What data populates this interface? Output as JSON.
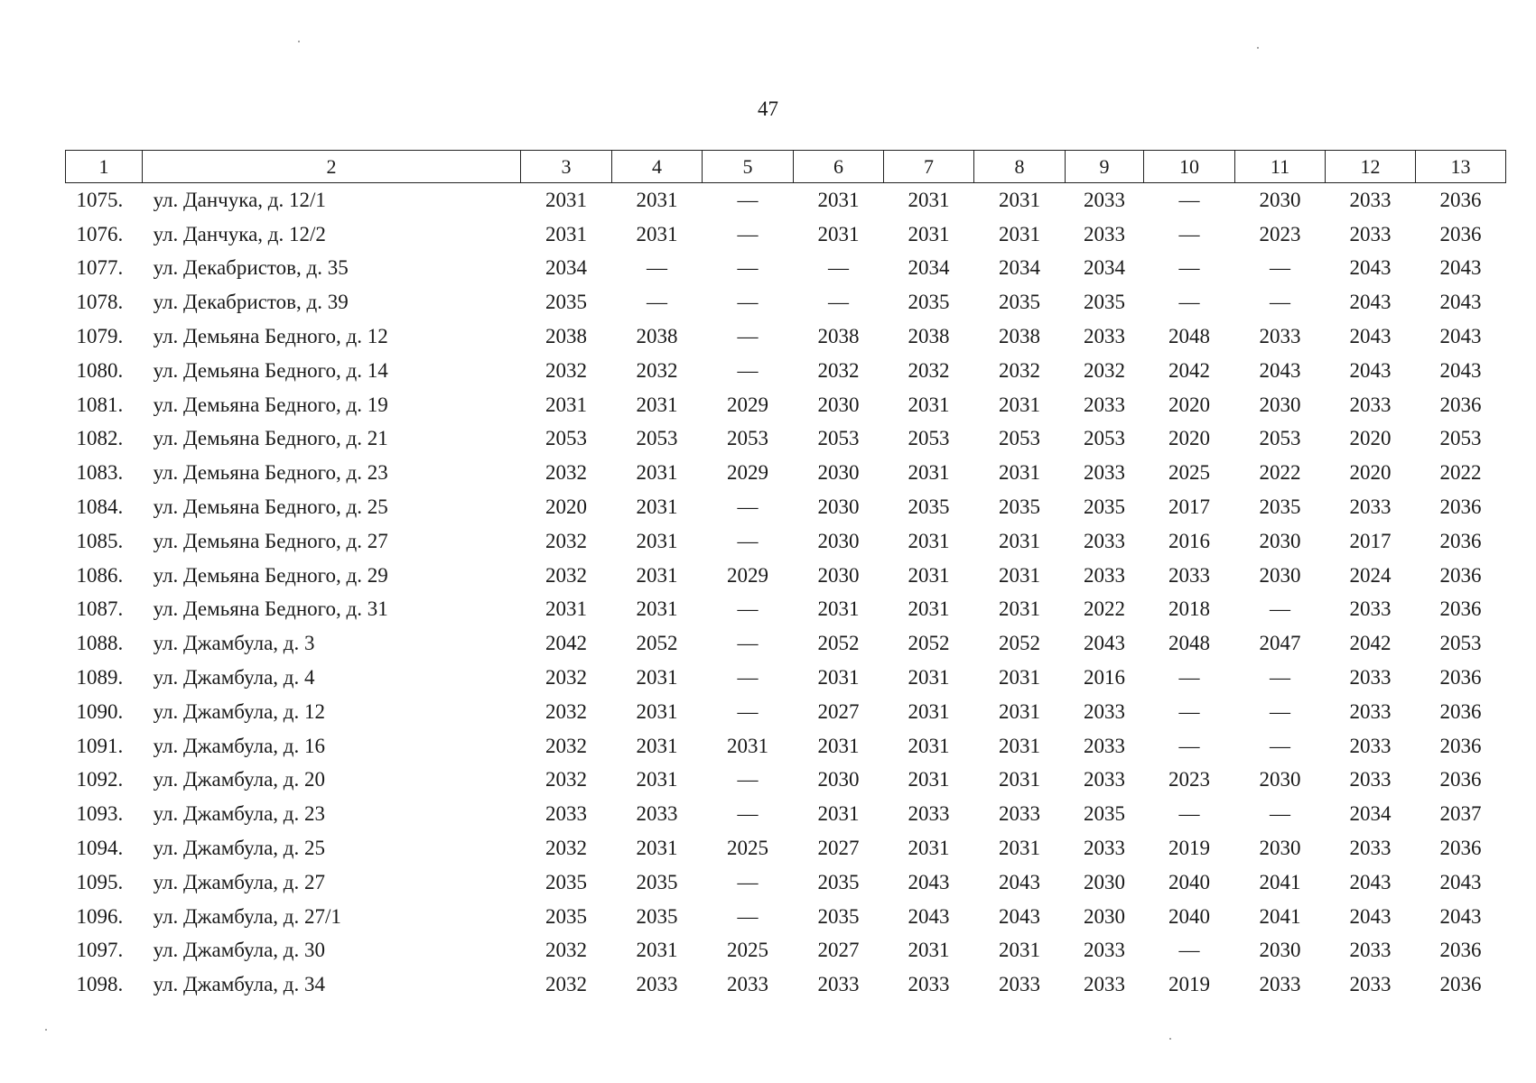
{
  "page_number": "47",
  "header": [
    "1",
    "2",
    "3",
    "4",
    "5",
    "6",
    "7",
    "8",
    "9",
    "10",
    "11",
    "12",
    "13"
  ],
  "rows": [
    [
      "1075.",
      "ул. Данчука, д. 12/1",
      "2031",
      "2031",
      "—",
      "2031",
      "2031",
      "2031",
      "2033",
      "—",
      "2030",
      "2033",
      "2036"
    ],
    [
      "1076.",
      "ул. Данчука, д. 12/2",
      "2031",
      "2031",
      "—",
      "2031",
      "2031",
      "2031",
      "2033",
      "—",
      "2023",
      "2033",
      "2036"
    ],
    [
      "1077.",
      "ул. Декабристов, д. 35",
      "2034",
      "—",
      "—",
      "—",
      "2034",
      "2034",
      "2034",
      "—",
      "—",
      "2043",
      "2043"
    ],
    [
      "1078.",
      "ул. Декабристов, д. 39",
      "2035",
      "—",
      "—",
      "—",
      "2035",
      "2035",
      "2035",
      "—",
      "—",
      "2043",
      "2043"
    ],
    [
      "1079.",
      "ул. Демьяна Бедного, д. 12",
      "2038",
      "2038",
      "—",
      "2038",
      "2038",
      "2038",
      "2033",
      "2048",
      "2033",
      "2043",
      "2043"
    ],
    [
      "1080.",
      "ул. Демьяна Бедного, д. 14",
      "2032",
      "2032",
      "—",
      "2032",
      "2032",
      "2032",
      "2032",
      "2042",
      "2043",
      "2043",
      "2043"
    ],
    [
      "1081.",
      "ул. Демьяна Бедного, д. 19",
      "2031",
      "2031",
      "2029",
      "2030",
      "2031",
      "2031",
      "2033",
      "2020",
      "2030",
      "2033",
      "2036"
    ],
    [
      "1082.",
      "ул. Демьяна Бедного, д. 21",
      "2053",
      "2053",
      "2053",
      "2053",
      "2053",
      "2053",
      "2053",
      "2020",
      "2053",
      "2020",
      "2053"
    ],
    [
      "1083.",
      "ул. Демьяна Бедного, д. 23",
      "2032",
      "2031",
      "2029",
      "2030",
      "2031",
      "2031",
      "2033",
      "2025",
      "2022",
      "2020",
      "2022"
    ],
    [
      "1084.",
      "ул. Демьяна Бедного, д. 25",
      "2020",
      "2031",
      "—",
      "2030",
      "2035",
      "2035",
      "2035",
      "2017",
      "2035",
      "2033",
      "2036"
    ],
    [
      "1085.",
      "ул. Демьяна Бедного, д. 27",
      "2032",
      "2031",
      "—",
      "2030",
      "2031",
      "2031",
      "2033",
      "2016",
      "2030",
      "2017",
      "2036"
    ],
    [
      "1086.",
      "ул. Демьяна Бедного, д. 29",
      "2032",
      "2031",
      "2029",
      "2030",
      "2031",
      "2031",
      "2033",
      "2033",
      "2030",
      "2024",
      "2036"
    ],
    [
      "1087.",
      "ул. Демьяна Бедного, д. 31",
      "2031",
      "2031",
      "—",
      "2031",
      "2031",
      "2031",
      "2022",
      "2018",
      "—",
      "2033",
      "2036"
    ],
    [
      "1088.",
      "ул. Джамбула, д. 3",
      "2042",
      "2052",
      "—",
      "2052",
      "2052",
      "2052",
      "2043",
      "2048",
      "2047",
      "2042",
      "2053"
    ],
    [
      "1089.",
      "ул. Джамбула, д. 4",
      "2032",
      "2031",
      "—",
      "2031",
      "2031",
      "2031",
      "2016",
      "—",
      "—",
      "2033",
      "2036"
    ],
    [
      "1090.",
      "ул. Джамбула, д. 12",
      "2032",
      "2031",
      "—",
      "2027",
      "2031",
      "2031",
      "2033",
      "—",
      "—",
      "2033",
      "2036"
    ],
    [
      "1091.",
      "ул. Джамбула, д. 16",
      "2032",
      "2031",
      "2031",
      "2031",
      "2031",
      "2031",
      "2033",
      "—",
      "—",
      "2033",
      "2036"
    ],
    [
      "1092.",
      "ул. Джамбула, д. 20",
      "2032",
      "2031",
      "—",
      "2030",
      "2031",
      "2031",
      "2033",
      "2023",
      "2030",
      "2033",
      "2036"
    ],
    [
      "1093.",
      "ул. Джамбула, д. 23",
      "2033",
      "2033",
      "—",
      "2031",
      "2033",
      "2033",
      "2035",
      "—",
      "—",
      "2034",
      "2037"
    ],
    [
      "1094.",
      "ул. Джамбула, д. 25",
      "2032",
      "2031",
      "2025",
      "2027",
      "2031",
      "2031",
      "2033",
      "2019",
      "2030",
      "2033",
      "2036"
    ],
    [
      "1095.",
      "ул. Джамбула, д. 27",
      "2035",
      "2035",
      "—",
      "2035",
      "2043",
      "2043",
      "2030",
      "2040",
      "2041",
      "2043",
      "2043"
    ],
    [
      "1096.",
      "ул. Джамбула, д. 27/1",
      "2035",
      "2035",
      "—",
      "2035",
      "2043",
      "2043",
      "2030",
      "2040",
      "2041",
      "2043",
      "2043"
    ],
    [
      "1097.",
      "ул. Джамбула, д. 30",
      "2032",
      "2031",
      "2025",
      "2027",
      "2031",
      "2031",
      "2033",
      "—",
      "2030",
      "2033",
      "2036"
    ],
    [
      "1098.",
      "ул. Джамбула, д. 34",
      "2032",
      "2033",
      "2033",
      "2033",
      "2033",
      "2033",
      "2033",
      "2019",
      "2033",
      "2033",
      "2036"
    ]
  ]
}
